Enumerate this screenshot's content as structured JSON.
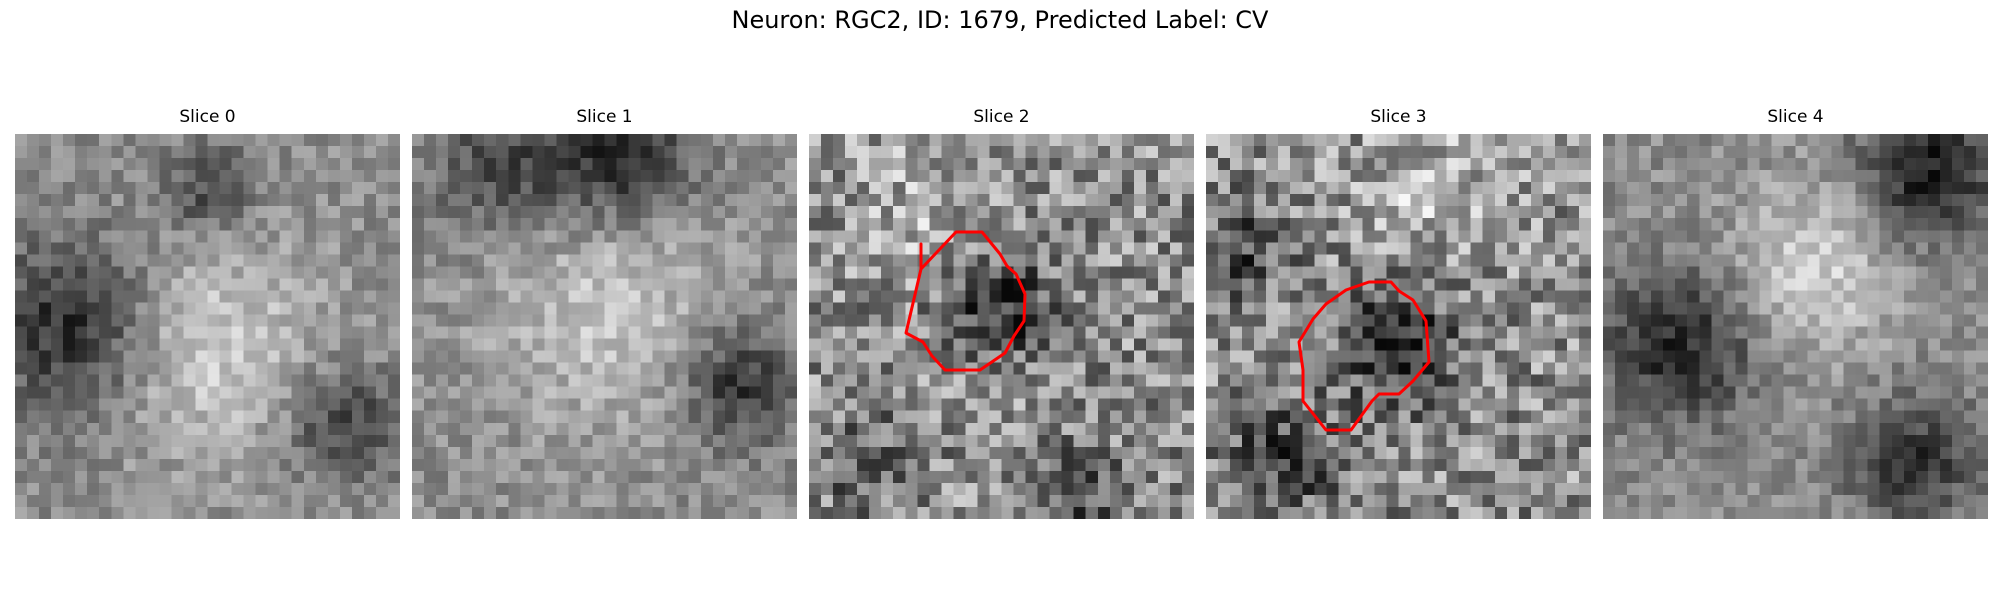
{
  "figure": {
    "title": "Neuron: RGC2, ID: 1679, Predicted Label: CV"
  },
  "panels": [
    {
      "title": "Slice 0",
      "has_contour": false
    },
    {
      "title": "Slice 1",
      "has_contour": false
    },
    {
      "title": "Slice 2",
      "has_contour": true
    },
    {
      "title": "Slice 3",
      "has_contour": true
    },
    {
      "title": "Slice 4",
      "has_contour": false
    }
  ],
  "colors": {
    "contour": "#ff0000",
    "colormap": "grayscale"
  }
}
